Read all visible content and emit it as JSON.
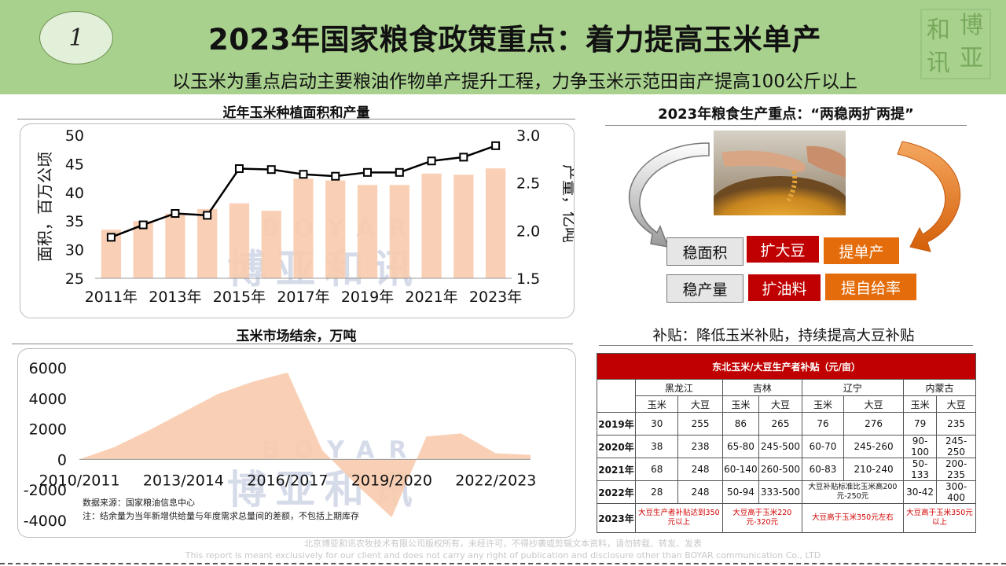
{
  "header": {
    "slide_number": "1",
    "title": "2023年国家粮食政策重点：着力提高玉米单产",
    "subtitle": "以玉米为重点启动主要粮油作物单产提升工程，力争玉米示范田亩产提高100公斤以上",
    "logo_text": "和博讯亚"
  },
  "watermark": {
    "brand_en": "BOYAR",
    "brand_cn": "博亚和讯"
  },
  "chart_data": [
    {
      "type": "bar+line",
      "title": "近年玉米种植面积和产量",
      "categories": [
        "2011年",
        "2012年",
        "2013年",
        "2014年",
        "2015年",
        "2016年",
        "2017年",
        "2018年",
        "2019年",
        "2020年",
        "2021年",
        "2022年",
        "2023年"
      ],
      "tick_labels": [
        "2011年",
        "2013年",
        "2015年",
        "2017年",
        "2019年",
        "2021年",
        "2023年"
      ],
      "ylabel": "面积，百万公顷",
      "y2label": "产量，亿吨",
      "ylim": [
        25,
        50
      ],
      "yticks": [
        "25",
        "30",
        "35",
        "40",
        "45",
        "50"
      ],
      "y2lim": [
        1.5,
        3.0
      ],
      "y2ticks": [
        "1.5",
        "2.0",
        "2.5",
        "3.0"
      ],
      "series": [
        {
          "type": "bar",
          "axis": "left",
          "color": "#f8cbad",
          "values": [
            33.5,
            35.0,
            36.3,
            37.1,
            38.1,
            36.8,
            42.4,
            42.1,
            41.3,
            41.3,
            43.3,
            43.1,
            44.2
          ]
        },
        {
          "type": "line",
          "axis": "right",
          "color": "#000000",
          "values": [
            1.93,
            2.06,
            2.18,
            2.16,
            2.65,
            2.64,
            2.59,
            2.57,
            2.61,
            2.61,
            2.73,
            2.77,
            2.89
          ]
        }
      ],
      "grid": false
    },
    {
      "type": "area",
      "title": "玉米市场结余，万吨",
      "categories": [
        "2010/2011",
        "2011/2012",
        "2012/2013",
        "2013/2014",
        "2014/2015",
        "2015/2016",
        "2016/2017",
        "2017/2018",
        "2018/2019",
        "2019/2020",
        "2020/2021",
        "2021/2022",
        "2022/2023",
        "2023/2024"
      ],
      "tick_labels": [
        "2010/2011",
        "2013/2014",
        "2016/2017",
        "2019/2020",
        "2022/2023"
      ],
      "ylim": [
        -4000,
        6000
      ],
      "yticks": [
        "6000",
        "4000",
        "2000",
        "0",
        "-2000",
        "-4000"
      ],
      "values": [
        0,
        800,
        1900,
        3100,
        4300,
        5100,
        5700,
        600,
        -1700,
        -3800,
        1500,
        1700,
        400,
        300
      ],
      "color": "#f8cbad",
      "grid": false,
      "notes": [
        "数据来源：国家粮油信息中心",
        "注：结余量为当年新增供给量与年度需求总量间的差额，不包括上期库存"
      ]
    }
  ],
  "right_top": {
    "title": "2023年粮食生产重点：“两稳两扩两提”",
    "boxes": [
      {
        "label": "稳面积",
        "style": "gray"
      },
      {
        "label": "扩大豆",
        "style": "red"
      },
      {
        "label": "提单产",
        "style": "orange"
      },
      {
        "label": "稳产量",
        "style": "gray"
      },
      {
        "label": "扩油料",
        "style": "red"
      },
      {
        "label": "提自给率",
        "style": "orange"
      }
    ]
  },
  "subsidy": {
    "heading": "补贴：降低玉米补贴，持续提高大豆补贴",
    "table_title": "东北玉米/大豆生产者补贴（元/亩）",
    "regions": [
      "黑龙江",
      "吉林",
      "辽宁",
      "内蒙古"
    ],
    "crops": [
      "玉米",
      "大豆"
    ],
    "rows": [
      {
        "year": "2019年",
        "cells": [
          "30",
          "255",
          "86",
          "265",
          "76",
          "276",
          "79",
          "235"
        ]
      },
      {
        "year": "2020年",
        "cells": [
          "38",
          "238",
          "65-80",
          "245-500",
          "60-70",
          "245-260",
          "90-100",
          "245-250"
        ]
      },
      {
        "year": "2021年",
        "cells": [
          "68",
          "248",
          "60-140",
          "260-500",
          "60-83",
          "210-240",
          "50-133",
          "200-235"
        ]
      },
      {
        "year": "2022年",
        "cells": [
          "28",
          "248",
          "50-94",
          "333-500"
        ],
        "merged": "大豆补贴标准比玉米高200元-250元",
        "tail": [
          "30-42",
          "300-400"
        ]
      },
      {
        "year": "2023年",
        "notes": [
          "大豆生产者补贴达到350元以上",
          "大豆高于玉米220元-320元",
          "大豆高于玉米350元左右",
          "大豆高于玉米350元以上"
        ]
      }
    ]
  },
  "footer": {
    "line1": "北京博亚和讯农牧技术有限公司版权所有，未经许可，不得抄袭或剪辑文本资料，请勿转载、转发、发表",
    "line2": "This report is meant exclusively for our client and does not carry any right of publication and disclosure other than BOYAR communication Co., LTD"
  }
}
